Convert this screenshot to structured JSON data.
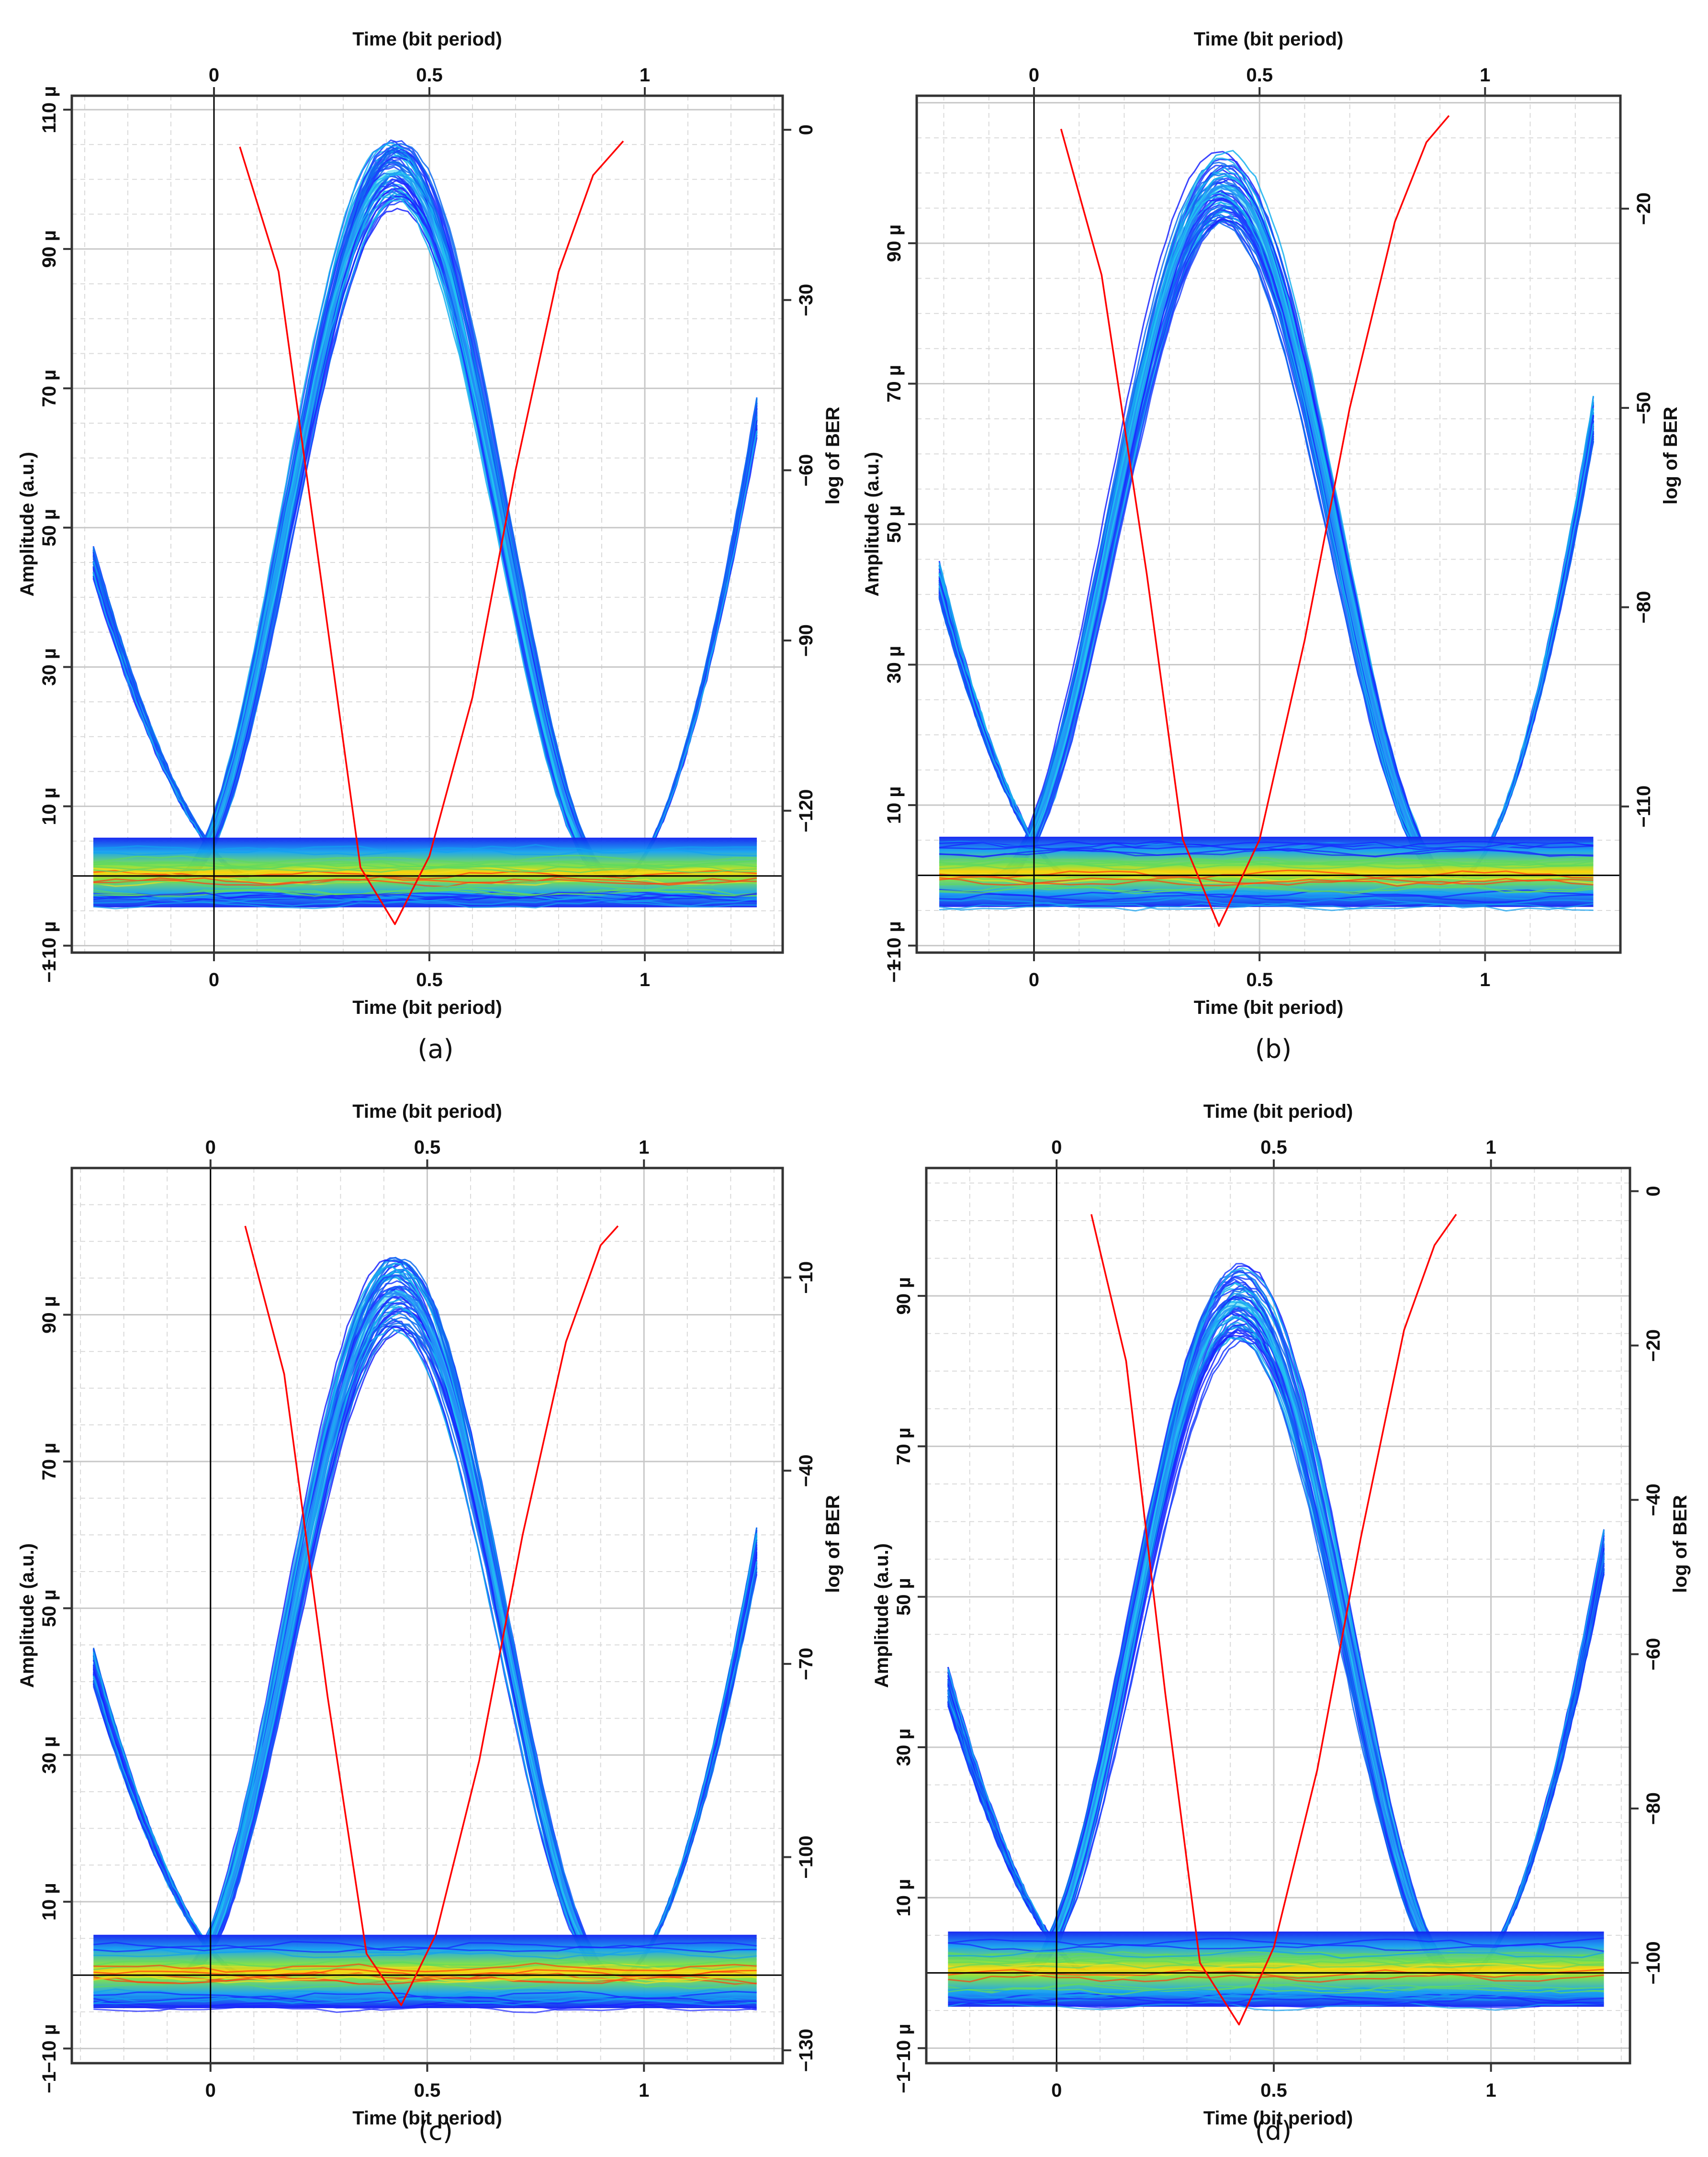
{
  "chart_data": [
    {
      "type": "line",
      "caption": "(a)",
      "xlabel_top": "Time (bit period)",
      "xlabel_bottom": "Time (bit period)",
      "ylabel_left": "Amplitude (a.u.)",
      "ylabel_right": "log of BER",
      "xlim": [
        -0.33,
        1.32
      ],
      "ylim_left": [
        -11,
        112
      ],
      "ylim_right": [
        -145,
        6
      ],
      "x_ticks": [
        "0",
        "0.5",
        "1"
      ],
      "x_tick_values": [
        0,
        0.5,
        1
      ],
      "x_top_ticks": [
        "0",
        "0.5",
        "1"
      ],
      "left_ticks": [
        "−10 µ",
        "10 µ",
        "30 µ",
        "50 µ",
        "70 µ",
        "90 µ",
        "110 µ"
      ],
      "left_tick_values": [
        -10,
        10,
        30,
        50,
        70,
        90,
        110
      ],
      "right_ticks": [
        "0",
        "−30",
        "−60",
        "−90",
        "−120"
      ],
      "right_tick_values": [
        0,
        -30,
        -60,
        -90,
        -120
      ],
      "corner_label": "−1",
      "eye": {
        "peak_amplitude": 101,
        "peak_time": 0.42,
        "band_width": 8,
        "left_start": 45,
        "right_end": 66,
        "zero_rail": 0
      },
      "ber_curve": {
        "x": [
          0.06,
          0.15,
          0.25,
          0.34,
          0.42,
          0.5,
          0.6,
          0.7,
          0.8,
          0.88,
          0.95
        ],
        "y": [
          -3,
          -25,
          -80,
          -130,
          -140,
          -128,
          -100,
          -60,
          -25,
          -8,
          -2
        ]
      },
      "grid": true
    },
    {
      "type": "line",
      "caption": "(b)",
      "xlabel_top": "Time (bit period)",
      "xlabel_bottom": "Time (bit period)",
      "ylabel_left": "Amplitude (a.u.)",
      "ylabel_right": "log of BER",
      "xlim": [
        -0.26,
        1.3
      ],
      "ylim_left": [
        -11,
        111
      ],
      "ylim_right": [
        -132,
        -3
      ],
      "x_ticks": [
        "0",
        "0.5",
        "1"
      ],
      "x_tick_values": [
        0,
        0.5,
        1
      ],
      "x_top_ticks": [
        "0",
        "0.5",
        "1"
      ],
      "left_ticks": [
        "−10 µ",
        "10 µ",
        "30 µ",
        "50 µ",
        "70 µ",
        "90 µ"
      ],
      "left_tick_values": [
        -10,
        10,
        30,
        50,
        70,
        90
      ],
      "right_ticks": [
        "−20",
        "−50",
        "−80",
        "−110"
      ],
      "right_tick_values": [
        -20,
        -50,
        -80,
        -110
      ],
      "corner_label": "−1",
      "eye": {
        "peak_amplitude": 98,
        "peak_time": 0.42,
        "band_width": 8,
        "left_start": 42,
        "right_end": 65,
        "zero_rail": 0
      },
      "ber_curve": {
        "x": [
          0.06,
          0.15,
          0.25,
          0.33,
          0.41,
          0.5,
          0.6,
          0.7,
          0.8,
          0.87,
          0.92
        ],
        "y": [
          -8,
          -30,
          -75,
          -115,
          -128,
          -115,
          -85,
          -50,
          -22,
          -10,
          -6
        ]
      },
      "grid": true
    },
    {
      "type": "line",
      "caption": "(c)",
      "xlabel_top": "Time (bit period)",
      "xlabel_bottom": "Time (bit period)",
      "ylabel_left": "Amplitude (a.u.)",
      "ylabel_right": "log of BER",
      "xlim": [
        -0.32,
        1.32
      ],
      "ylim_left": [
        -12,
        110
      ],
      "ylim_right": [
        -132,
        7
      ],
      "x_ticks": [
        "0",
        "0.5",
        "1"
      ],
      "x_tick_values": [
        0,
        0.5,
        1
      ],
      "x_top_ticks": [
        "0",
        "0.5",
        "1"
      ],
      "left_ticks": [
        "−10 µ",
        "10 µ",
        "30 µ",
        "50 µ",
        "70 µ",
        "90 µ"
      ],
      "left_tick_values": [
        -10,
        10,
        30,
        50,
        70,
        90
      ],
      "right_ticks": [
        "−10",
        "−40",
        "−70",
        "−100",
        "−130"
      ],
      "right_tick_values": [
        -10,
        -40,
        -70,
        -100,
        -130
      ],
      "corner_label": "−1",
      "eye": {
        "peak_amplitude": 93,
        "peak_time": 0.43,
        "band_width": 8,
        "left_start": 42,
        "right_end": 58,
        "zero_rail": 0
      },
      "ber_curve": {
        "x": [
          0.08,
          0.17,
          0.27,
          0.36,
          0.44,
          0.52,
          0.62,
          0.72,
          0.82,
          0.9,
          0.94
        ],
        "y": [
          -2,
          -25,
          -75,
          -115,
          -123,
          -112,
          -85,
          -50,
          -20,
          -5,
          -2
        ]
      },
      "grid": true
    },
    {
      "type": "line",
      "caption": "(d)",
      "xlabel_top": "Time (bit period)",
      "xlabel_bottom": "Time (bit period)",
      "ylabel_left": "Amplitude (a.u.)",
      "ylabel_right": "log of BER",
      "xlim": [
        -0.3,
        1.32
      ],
      "ylim_left": [
        -12,
        107
      ],
      "ylim_right": [
        -113,
        3
      ],
      "x_ticks": [
        "0",
        "0.5",
        "1"
      ],
      "x_tick_values": [
        0,
        0.5,
        1
      ],
      "x_top_ticks": [
        "0",
        "0.5",
        "1"
      ],
      "left_ticks": [
        "−10 µ",
        "10 µ",
        "30 µ",
        "50 µ",
        "70 µ",
        "90 µ"
      ],
      "left_tick_values": [
        -10,
        10,
        30,
        50,
        70,
        90
      ],
      "right_ticks": [
        "0",
        "−20",
        "−40",
        "−60",
        "−80",
        "−100"
      ],
      "right_tick_values": [
        0,
        -20,
        -40,
        -60,
        -80,
        -100
      ],
      "corner_label": "−1",
      "eye": {
        "peak_amplitude": 89,
        "peak_time": 0.42,
        "band_width": 8,
        "left_start": 38,
        "right_end": 56,
        "zero_rail": 0
      },
      "ber_curve": {
        "x": [
          0.08,
          0.16,
          0.25,
          0.33,
          0.42,
          0.5,
          0.6,
          0.7,
          0.8,
          0.87,
          0.92
        ],
        "y": [
          -3,
          -22,
          -65,
          -100,
          -108,
          -98,
          -75,
          -45,
          -18,
          -7,
          -3
        ]
      },
      "grid": true
    }
  ]
}
